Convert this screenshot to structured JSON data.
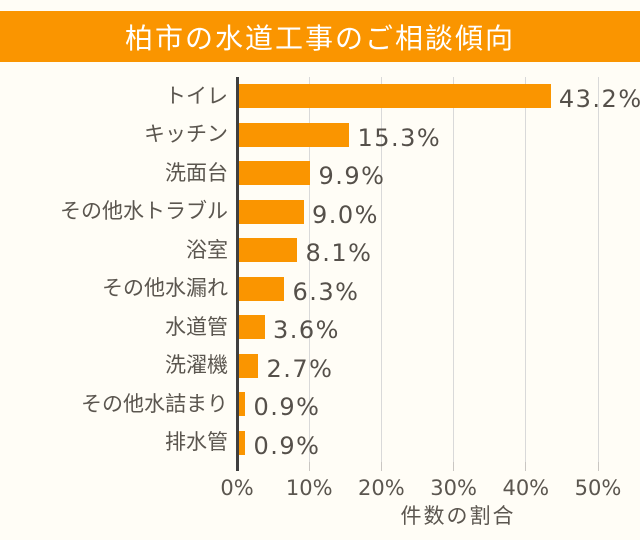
{
  "title": {
    "text": "柏市の水道工事のご相談傾向",
    "banner_color": "#FA9500",
    "text_color": "#FFFFFF"
  },
  "page": {
    "background_color": "#FFFDF6"
  },
  "chart_data": {
    "type": "bar",
    "orientation": "horizontal",
    "categories": [
      "トイレ",
      "キッチン",
      "洗面台",
      "その他水トラブル",
      "浴室",
      "その他水漏れ",
      "水道管",
      "洗濯機",
      "その他水詰まり",
      "排水管"
    ],
    "values": [
      43.2,
      15.3,
      9.9,
      9.0,
      8.1,
      6.3,
      3.6,
      2.7,
      0.9,
      0.9
    ],
    "value_labels": [
      "43.2%",
      "15.3%",
      "9.9%",
      "9.0%",
      "8.1%",
      "6.3%",
      "3.6%",
      "2.7%",
      "0.9%",
      "0.9%"
    ],
    "xlabel": "件数の割合",
    "x_ticks": [
      "0%",
      "10%",
      "20%",
      "30%",
      "40%",
      "50%"
    ],
    "x_tick_values": [
      0,
      10,
      20,
      30,
      40,
      50
    ],
    "xlim": [
      0,
      50
    ],
    "grid": true,
    "legend": false,
    "bar_color": "#FA9500",
    "gridline_color": "#D9D9D9",
    "axis_line_color": "#3F3F3F",
    "label_color": "#5B564F"
  }
}
